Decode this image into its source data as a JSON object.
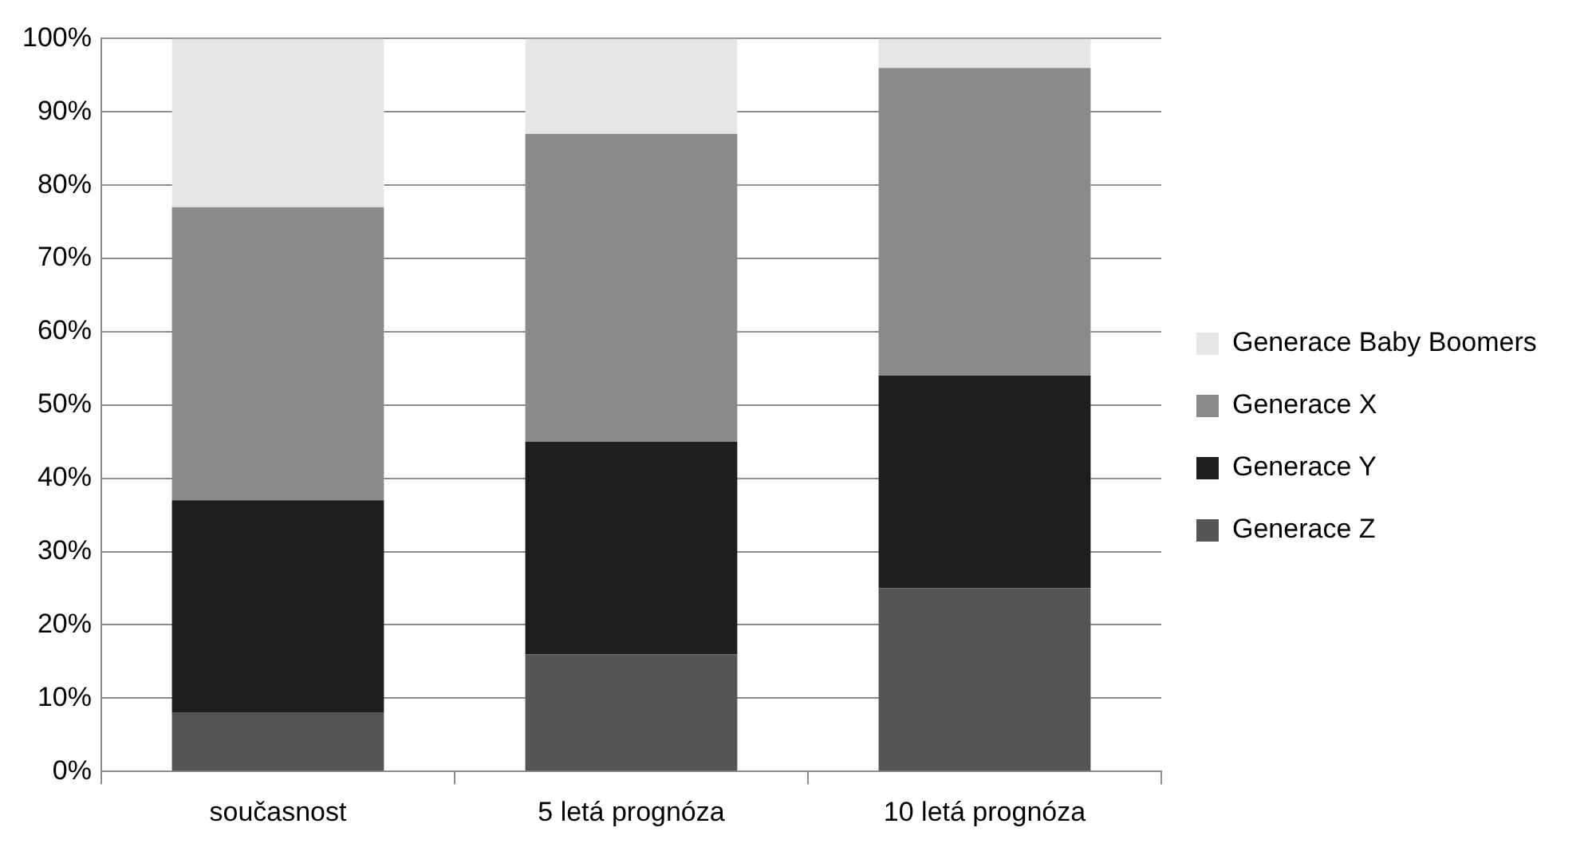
{
  "chart_data": {
    "type": "bar",
    "stacked": true,
    "categories": [
      "současnost",
      "5 letá prognóza",
      "10 letá prognóza"
    ],
    "series": [
      {
        "name": "Generace Z",
        "color": "#555555",
        "values": [
          8,
          16,
          25
        ]
      },
      {
        "name": "Generace Y",
        "color": "#1e1e1e",
        "values": [
          29,
          29,
          29
        ]
      },
      {
        "name": "Generace X",
        "color": "#8a8a8a",
        "values": [
          40,
          42,
          42
        ]
      },
      {
        "name": "Generace Baby Boomers",
        "color": "#e6e6e6",
        "values": [
          23,
          13,
          4
        ]
      }
    ],
    "ylim": [
      0,
      100
    ],
    "yticks": [
      {
        "value": 0,
        "label": "0%"
      },
      {
        "value": 10,
        "label": "10%"
      },
      {
        "value": 20,
        "label": "20%"
      },
      {
        "value": 30,
        "label": "30%"
      },
      {
        "value": 40,
        "label": "40%"
      },
      {
        "value": 50,
        "label": "50%"
      },
      {
        "value": 60,
        "label": "60%"
      },
      {
        "value": 70,
        "label": "70%"
      },
      {
        "value": 80,
        "label": "80%"
      },
      {
        "value": 90,
        "label": "90%"
      },
      {
        "value": 100,
        "label": "100%"
      }
    ],
    "grid": "y",
    "legend": "right"
  }
}
